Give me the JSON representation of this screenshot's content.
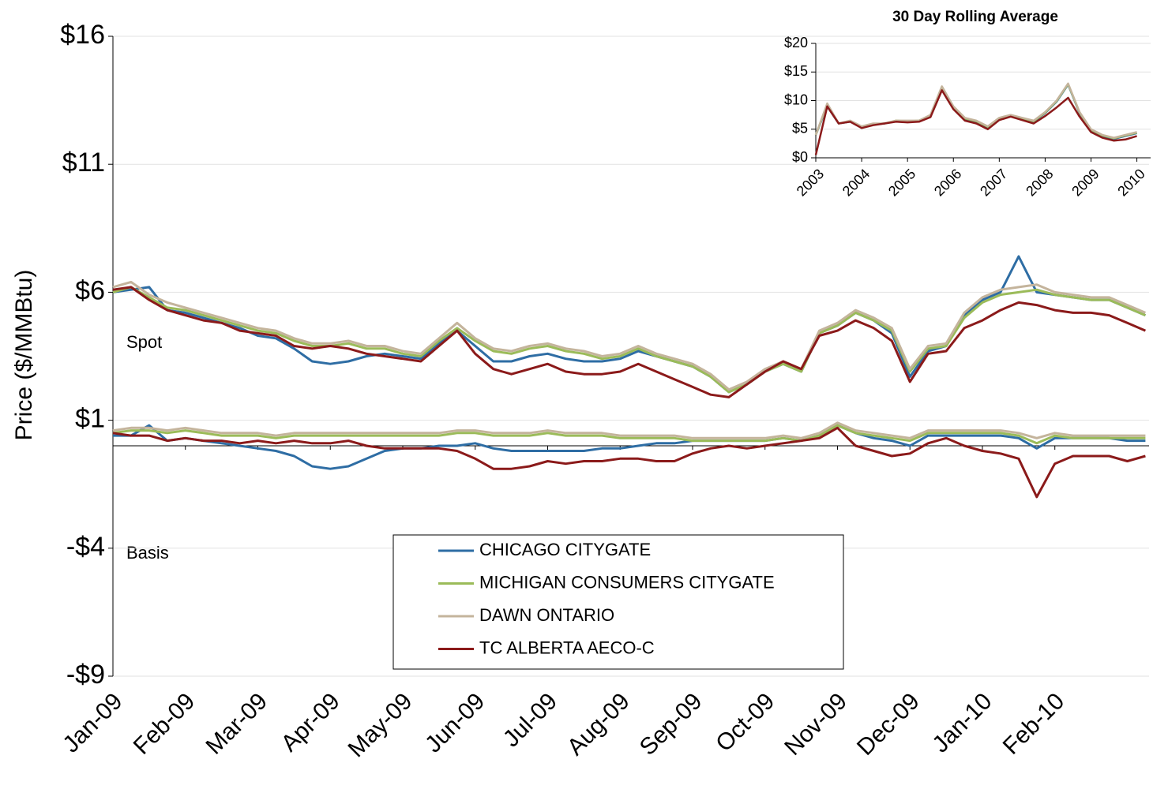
{
  "chart_data": [
    {
      "type": "line",
      "y_label": "Price ($/MMBtu)",
      "annotations": [
        "Spot",
        "Basis"
      ],
      "xlim": [
        0,
        14.3
      ],
      "xticks": [
        {
          "value": 0,
          "label": "Jan-09"
        },
        {
          "value": 1,
          "label": "Feb-09"
        },
        {
          "value": 2,
          "label": "Mar-09"
        },
        {
          "value": 3,
          "label": "Apr-09"
        },
        {
          "value": 4,
          "label": "May-09"
        },
        {
          "value": 5,
          "label": "Jun-09"
        },
        {
          "value": 6,
          "label": "Jul-09"
        },
        {
          "value": 7,
          "label": "Aug-09"
        },
        {
          "value": 8,
          "label": "Sep-09"
        },
        {
          "value": 9,
          "label": "Oct-09"
        },
        {
          "value": 10,
          "label": "Nov-09"
        },
        {
          "value": 11,
          "label": "Dec-09"
        },
        {
          "value": 12,
          "label": "Jan-10"
        },
        {
          "value": 13,
          "label": "Feb-10"
        }
      ],
      "ylim": [
        -9,
        16
      ],
      "yticks": [
        {
          "value": -9,
          "label": "-$9"
        },
        {
          "value": -4,
          "label": "-$4"
        },
        {
          "value": 1,
          "label": "$1"
        },
        {
          "value": 6,
          "label": "$6"
        },
        {
          "value": 11,
          "label": "$11"
        },
        {
          "value": 16,
          "label": "$16"
        }
      ],
      "grid": true,
      "x": [
        0,
        0.25,
        0.5,
        0.75,
        1,
        1.25,
        1.5,
        1.75,
        2,
        2.25,
        2.5,
        2.75,
        3,
        3.25,
        3.5,
        3.75,
        4,
        4.25,
        4.5,
        4.75,
        5,
        5.25,
        5.5,
        5.75,
        6,
        6.25,
        6.5,
        6.75,
        7,
        7.25,
        7.5,
        7.75,
        8,
        8.25,
        8.5,
        8.75,
        9,
        9.25,
        9.5,
        9.75,
        10,
        10.25,
        10.5,
        10.75,
        11,
        11.25,
        11.5,
        11.75,
        12,
        12.25,
        12.5,
        12.75,
        13,
        13.25,
        13.5,
        13.75,
        14,
        14.25
      ],
      "series": [
        {
          "name": "CHICAGO CITYGATE",
          "color": "#2e6da4",
          "values": [
            6.0,
            6.1,
            6.2,
            5.3,
            5.2,
            5.0,
            4.8,
            4.6,
            4.3,
            4.2,
            3.8,
            3.3,
            3.2,
            3.3,
            3.5,
            3.6,
            3.5,
            3.4,
            4.0,
            4.5,
            3.9,
            3.3,
            3.3,
            3.5,
            3.6,
            3.4,
            3.3,
            3.3,
            3.4,
            3.7,
            3.5,
            3.3,
            3.1,
            2.7,
            2.1,
            2.4,
            2.9,
            3.2,
            2.9,
            4.4,
            4.7,
            5.2,
            4.9,
            4.4,
            2.7,
            3.7,
            3.9,
            5.1,
            5.7,
            6.0,
            7.4,
            6.0,
            5.9,
            5.8,
            5.7,
            5.7,
            5.4,
            5.1
          ],
          "basis_values": [
            0.4,
            0.4,
            0.8,
            0.2,
            0.3,
            0.2,
            0.1,
            0.0,
            -0.1,
            -0.2,
            -0.4,
            -0.8,
            -0.9,
            -0.8,
            -0.5,
            -0.2,
            -0.1,
            -0.1,
            0.0,
            0.0,
            0.1,
            -0.1,
            -0.2,
            -0.2,
            -0.2,
            -0.2,
            -0.2,
            -0.1,
            -0.1,
            0.0,
            0.1,
            0.1,
            0.2,
            0.2,
            0.2,
            0.2,
            0.2,
            0.3,
            0.2,
            0.4,
            0.8,
            0.5,
            0.3,
            0.2,
            0.0,
            0.4,
            0.4,
            0.4,
            0.4,
            0.4,
            0.3,
            -0.1,
            0.3,
            0.3,
            0.3,
            0.3,
            0.2,
            0.2
          ]
        },
        {
          "name": "MICHIGAN CONSUMERS CITYGATE",
          "color": "#9bbb59",
          "values": [
            6.0,
            6.2,
            5.8,
            5.4,
            5.3,
            5.1,
            4.9,
            4.7,
            4.5,
            4.4,
            4.1,
            3.9,
            3.9,
            4.0,
            3.8,
            3.8,
            3.6,
            3.5,
            4.1,
            4.6,
            4.1,
            3.7,
            3.6,
            3.8,
            3.9,
            3.7,
            3.6,
            3.4,
            3.5,
            3.8,
            3.5,
            3.3,
            3.1,
            2.7,
            2.1,
            2.4,
            2.9,
            3.2,
            2.9,
            4.4,
            4.7,
            5.2,
            4.9,
            4.5,
            2.9,
            3.8,
            3.9,
            5.0,
            5.6,
            5.9,
            6.0,
            6.1,
            5.9,
            5.8,
            5.7,
            5.7,
            5.4,
            5.1
          ],
          "basis_values": [
            0.5,
            0.6,
            0.6,
            0.5,
            0.6,
            0.5,
            0.4,
            0.4,
            0.4,
            0.3,
            0.4,
            0.4,
            0.4,
            0.4,
            0.4,
            0.4,
            0.4,
            0.4,
            0.4,
            0.5,
            0.5,
            0.4,
            0.4,
            0.4,
            0.5,
            0.4,
            0.4,
            0.4,
            0.3,
            0.3,
            0.3,
            0.3,
            0.2,
            0.2,
            0.2,
            0.2,
            0.2,
            0.3,
            0.2,
            0.4,
            0.8,
            0.5,
            0.4,
            0.3,
            0.2,
            0.5,
            0.5,
            0.5,
            0.5,
            0.5,
            0.4,
            0.1,
            0.4,
            0.3,
            0.3,
            0.3,
            0.3,
            0.3
          ]
        },
        {
          "name": "DAWN ONTARIO",
          "color": "#c4b49c",
          "values": [
            6.2,
            6.4,
            5.9,
            5.6,
            5.4,
            5.2,
            5.0,
            4.8,
            4.6,
            4.5,
            4.2,
            4.0,
            4.0,
            4.1,
            3.9,
            3.9,
            3.7,
            3.6,
            4.2,
            4.8,
            4.2,
            3.8,
            3.7,
            3.9,
            4.0,
            3.8,
            3.7,
            3.5,
            3.6,
            3.9,
            3.6,
            3.4,
            3.2,
            2.8,
            2.2,
            2.5,
            3.0,
            3.3,
            3.0,
            4.5,
            4.8,
            5.3,
            5.0,
            4.6,
            3.0,
            3.9,
            4.0,
            5.2,
            5.8,
            6.1,
            6.2,
            6.3,
            6.0,
            5.9,
            5.8,
            5.8,
            5.5,
            5.2
          ],
          "basis_values": [
            0.6,
            0.7,
            0.7,
            0.6,
            0.7,
            0.6,
            0.5,
            0.5,
            0.5,
            0.4,
            0.5,
            0.5,
            0.5,
            0.5,
            0.5,
            0.5,
            0.5,
            0.5,
            0.5,
            0.6,
            0.6,
            0.5,
            0.5,
            0.5,
            0.6,
            0.5,
            0.5,
            0.5,
            0.4,
            0.4,
            0.4,
            0.4,
            0.3,
            0.3,
            0.3,
            0.3,
            0.3,
            0.4,
            0.3,
            0.5,
            0.9,
            0.6,
            0.5,
            0.4,
            0.3,
            0.6,
            0.6,
            0.6,
            0.6,
            0.6,
            0.5,
            0.3,
            0.5,
            0.4,
            0.4,
            0.4,
            0.4,
            0.4
          ]
        },
        {
          "name": "TC ALBERTA AECO-C",
          "color": "#8b1a1a",
          "values": [
            6.1,
            6.2,
            5.7,
            5.3,
            5.1,
            4.9,
            4.8,
            4.5,
            4.4,
            4.3,
            3.9,
            3.8,
            3.9,
            3.8,
            3.6,
            3.5,
            3.4,
            3.3,
            3.9,
            4.5,
            3.6,
            3.0,
            2.8,
            3.0,
            3.2,
            2.9,
            2.8,
            2.8,
            2.9,
            3.2,
            2.9,
            2.6,
            2.3,
            2.0,
            1.9,
            2.4,
            2.9,
            3.3,
            3.0,
            4.3,
            4.5,
            4.9,
            4.6,
            4.1,
            2.5,
            3.6,
            3.7,
            4.6,
            4.9,
            5.3,
            5.6,
            5.5,
            5.3,
            5.2,
            5.2,
            5.1,
            4.8,
            4.5
          ],
          "basis_values": [
            0.5,
            0.4,
            0.4,
            0.2,
            0.3,
            0.2,
            0.2,
            0.1,
            0.2,
            0.1,
            0.2,
            0.1,
            0.1,
            0.2,
            0.0,
            -0.1,
            -0.1,
            -0.1,
            -0.1,
            -0.2,
            -0.5,
            -0.9,
            -0.9,
            -0.8,
            -0.6,
            -0.7,
            -0.6,
            -0.6,
            -0.5,
            -0.5,
            -0.6,
            -0.6,
            -0.3,
            -0.1,
            0.0,
            -0.1,
            0.0,
            0.1,
            0.2,
            0.3,
            0.7,
            0.0,
            -0.2,
            -0.4,
            -0.3,
            0.1,
            0.3,
            0.0,
            -0.2,
            -0.3,
            -0.5,
            -2.0,
            -0.7,
            -0.4,
            -0.4,
            -0.4,
            -0.6,
            -0.4
          ]
        }
      ]
    },
    {
      "type": "line",
      "title": "30 Day Rolling Average",
      "xlim": [
        2003,
        2010.3
      ],
      "xticks": [
        2003,
        2004,
        2005,
        2006,
        2007,
        2008,
        2009,
        2010
      ],
      "ylim": [
        0,
        20
      ],
      "yticks": [
        {
          "value": 0,
          "label": "$0"
        },
        {
          "value": 5,
          "label": "$5"
        },
        {
          "value": 10,
          "label": "$10"
        },
        {
          "value": 15,
          "label": "$15"
        },
        {
          "value": 20,
          "label": "$20"
        }
      ],
      "grid": true,
      "x": [
        2003,
        2003.25,
        2003.5,
        2003.75,
        2004,
        2004.25,
        2004.5,
        2004.75,
        2005,
        2005.25,
        2005.5,
        2005.75,
        2006,
        2006.25,
        2006.5,
        2006.75,
        2007,
        2007.25,
        2007.5,
        2007.75,
        2008,
        2008.25,
        2008.5,
        2008.75,
        2009,
        2009.25,
        2009.5,
        2009.75,
        2010
      ],
      "series": [
        {
          "color": "#2e6da4",
          "values": [
            4,
            9,
            6,
            6.3,
            5.3,
            5.8,
            6,
            6.4,
            6.3,
            6.4,
            7.3,
            12.3,
            8.8,
            6.8,
            6.3,
            5.3,
            6.8,
            7.3,
            6.8,
            6.3,
            7.8,
            9.8,
            12.8,
            7.8,
            4.8,
            3.8,
            3.3,
            3.8,
            4.3
          ]
        },
        {
          "color": "#9bbb59",
          "values": [
            4,
            9.3,
            6,
            6.4,
            5.4,
            5.9,
            6,
            6.5,
            6.4,
            6.5,
            7.4,
            12.4,
            8.9,
            6.9,
            6.4,
            5.4,
            6.9,
            7.4,
            6.9,
            6.4,
            7.9,
            9.9,
            12.9,
            7.9,
            4.9,
            3.9,
            3.4,
            3.9,
            4.4
          ]
        },
        {
          "color": "#c4b49c",
          "values": [
            4,
            9.5,
            6,
            6.5,
            5.5,
            6,
            6,
            6.5,
            6.5,
            6.5,
            7.5,
            12.5,
            9,
            7,
            6.5,
            5.5,
            7,
            7.5,
            7,
            6.5,
            8,
            10,
            13,
            8,
            5,
            4,
            3.5,
            4,
            4.5
          ]
        },
        {
          "color": "#8b1a1a",
          "values": [
            0.5,
            9,
            6,
            6.3,
            5.2,
            5.7,
            6,
            6.3,
            6.2,
            6.3,
            7.1,
            11.8,
            8.5,
            6.5,
            6,
            5,
            6.6,
            7.2,
            6.6,
            6,
            7.3,
            8.8,
            10.5,
            7.2,
            4.5,
            3.5,
            3,
            3.2,
            3.8
          ]
        }
      ]
    }
  ]
}
